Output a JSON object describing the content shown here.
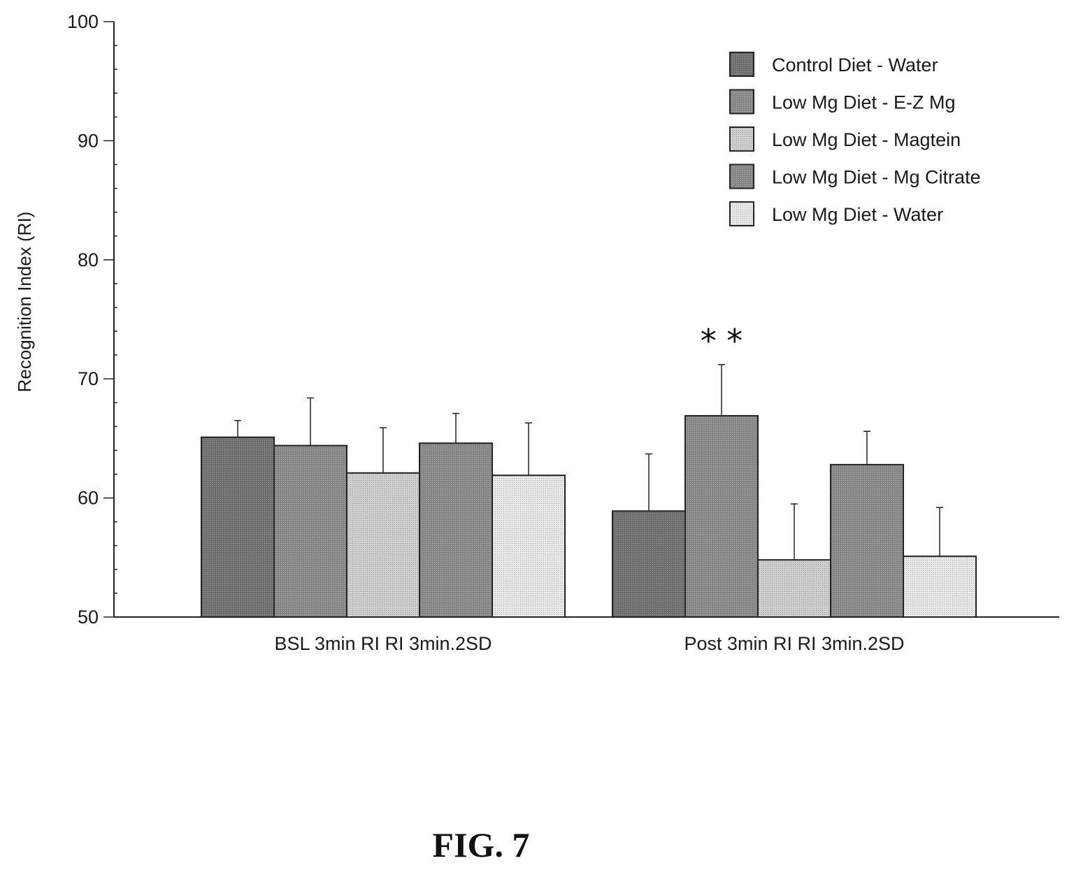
{
  "chart_data": {
    "type": "bar",
    "title": "",
    "xlabel": "",
    "ylabel": "Recognition Index (RI)",
    "ylim": [
      50,
      100
    ],
    "yticks": [
      "50",
      "60",
      "70",
      "80",
      "90",
      "100"
    ],
    "categories": [
      "BSL 3min RI RI 3min.2SD",
      "Post 3min RI RI 3min.2SD"
    ],
    "series": [
      {
        "name": "Control Diet - Water",
        "values": [
          65.1,
          58.9
        ],
        "errors": [
          1.4,
          4.8
        ],
        "color": "#7a7a7a"
      },
      {
        "name": "Low  Mg Diet - E-Z Mg",
        "values": [
          64.4,
          66.9
        ],
        "errors": [
          4.0,
          4.3
        ],
        "color": "#8c8c8c"
      },
      {
        "name": "Low  Mg Diet - Magtein",
        "values": [
          62.1,
          54.8
        ],
        "errors": [
          3.8,
          4.7
        ],
        "color": "#c4c4c4"
      },
      {
        "name": "Low  Mg Diet - Mg Citrate",
        "values": [
          64.6,
          62.8
        ],
        "errors": [
          2.5,
          2.8
        ],
        "color": "#8c8c8c"
      },
      {
        "name": "Low  Mg Diet - Water",
        "values": [
          61.9,
          55.1
        ],
        "errors": [
          4.4,
          4.1
        ],
        "color": "#e3e3e3"
      }
    ],
    "annotations": [
      {
        "text": "* *",
        "category": 1,
        "series": 1
      }
    ],
    "legend_position": "top-right",
    "grid": false
  },
  "figure_label": "FIG. 7"
}
